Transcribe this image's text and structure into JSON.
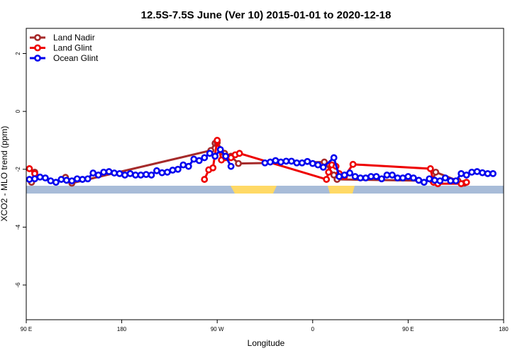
{
  "chart_data": {
    "type": "line",
    "title": "12.5S-7.5S June (Ver 10)   2015-01-01 to 2020-12-18",
    "x_label": "Longitude",
    "y_label": "XCO2 - MLO trend (ppm)",
    "xlim": [
      90,
      540
    ],
    "xticks": [
      {
        "value": 90,
        "label": "90 E"
      },
      {
        "value": 180,
        "label": "180"
      },
      {
        "value": 270,
        "label": "90 W"
      },
      {
        "value": 360,
        "label": "0"
      },
      {
        "value": 450,
        "label": "90 E"
      },
      {
        "value": 540,
        "label": "180"
      }
    ],
    "ylim": [
      -7.2,
      2.87
    ],
    "yticks": [
      2,
      0,
      -2,
      -4,
      -6
    ],
    "legend": "top-left",
    "series": [
      {
        "name": "Land Nadir",
        "color": "#a52a2a",
        "x": [
          95,
          98,
          113,
          127,
          133,
          264,
          268,
          270,
          277,
          283,
          290,
          371,
          380,
          383,
          473,
          476,
          497,
          503
        ],
        "values": [
          -2.45,
          -2.1,
          null,
          -2.28,
          -2.48,
          -1.35,
          -1.1,
          -1.08,
          -1.45,
          -1.55,
          -1.8,
          -1.75,
          -2.2,
          -2.35,
          -2.4,
          -2.1,
          -2.4,
          -2.48
        ]
      },
      {
        "name": "Land Glint",
        "color": "#ee0000",
        "x": [
          93,
          98,
          120,
          258,
          262,
          266,
          270,
          274,
          278,
          283,
          287,
          291,
          373,
          375,
          378,
          382,
          385,
          390,
          398,
          471,
          474,
          478,
          500,
          505
        ],
        "values": [
          -1.98,
          -2.15,
          null,
          -2.35,
          -2.02,
          -1.95,
          -1.0,
          -1.68,
          -1.6,
          -1.6,
          -1.5,
          -1.45,
          -2.35,
          -2.1,
          -1.85,
          -1.9,
          -2.15,
          -2.25,
          -1.83,
          -1.98,
          -2.45,
          -2.5,
          -2.5,
          -2.45
        ]
      },
      {
        "name": "Ocean Glint",
        "color": "#0000ee",
        "x": [
          93,
          98,
          103,
          108,
          113,
          118,
          123,
          128,
          133,
          138,
          143,
          148,
          153,
          158,
          163,
          168,
          173,
          178,
          183,
          188,
          193,
          198,
          203,
          208,
          213,
          218,
          223,
          228,
          233,
          238,
          243,
          248,
          253,
          258,
          263,
          268,
          273,
          278,
          283,
          300,
          315,
          320,
          325,
          330,
          335,
          340,
          345,
          350,
          355,
          360,
          365,
          370,
          380,
          385,
          390,
          395,
          400,
          405,
          410,
          415,
          420,
          425,
          430,
          435,
          440,
          445,
          450,
          455,
          460,
          465,
          470,
          475,
          480,
          485,
          490,
          495,
          500,
          505,
          510,
          515,
          520,
          525,
          530
        ],
        "values": [
          -2.35,
          -2.33,
          -2.27,
          -2.3,
          -2.4,
          -2.45,
          -2.35,
          -2.38,
          -2.4,
          -2.33,
          -2.35,
          -2.33,
          -2.13,
          -2.2,
          -2.1,
          -2.08,
          -2.13,
          -2.15,
          -2.2,
          -2.15,
          -2.2,
          -2.2,
          -2.18,
          -2.2,
          -2.05,
          -2.12,
          -2.1,
          -2.03,
          -2.0,
          -1.85,
          -1.9,
          -1.65,
          -1.7,
          -1.6,
          -1.45,
          -1.55,
          -1.32,
          -1.55,
          -1.9,
          null,
          -1.78,
          -1.75,
          -1.7,
          -1.75,
          -1.72,
          -1.72,
          -1.78,
          -1.78,
          -1.73,
          -1.8,
          -1.85,
          -1.93,
          -1.6,
          -2.25,
          -2.2,
          -2.13,
          -2.25,
          -2.3,
          -2.3,
          -2.25,
          -2.25,
          -2.33,
          -2.2,
          -2.2,
          -2.3,
          -2.3,
          -2.25,
          -2.3,
          -2.38,
          -2.45,
          -2.33,
          -2.38,
          -2.4,
          -2.3,
          -2.4,
          -2.4,
          -2.15,
          -2.2,
          -2.1,
          -2.08,
          -2.12,
          -2.15,
          -2.15
        ]
      }
    ]
  }
}
